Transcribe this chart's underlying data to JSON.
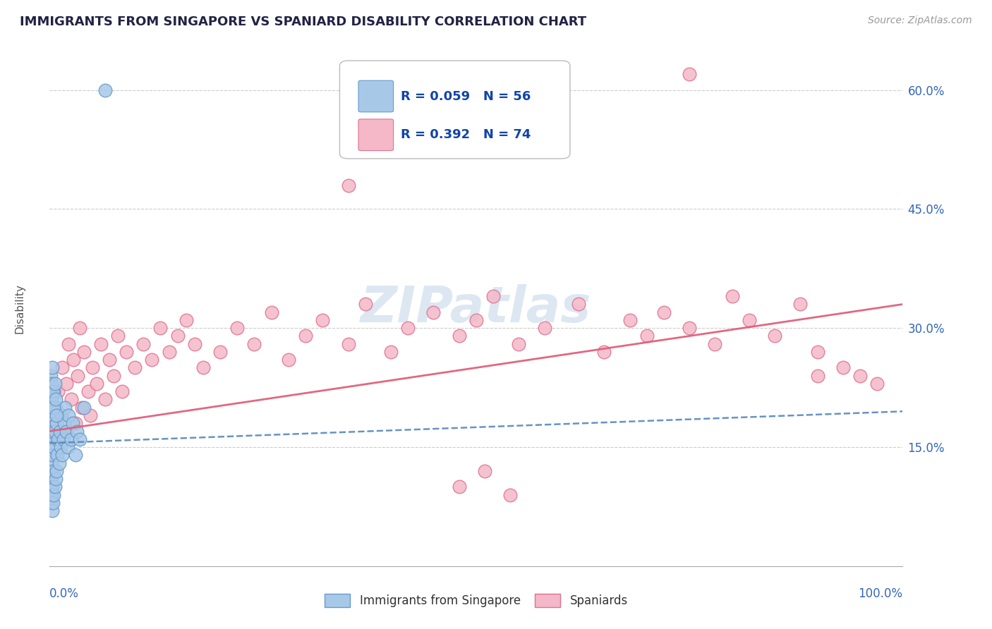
{
  "title": "IMMIGRANTS FROM SINGAPORE VS SPANIARD DISABILITY CORRELATION CHART",
  "source": "Source: ZipAtlas.com",
  "ylabel": "Disability",
  "y_ticks": [
    0.0,
    0.15,
    0.3,
    0.45,
    0.6
  ],
  "y_tick_labels": [
    "",
    "15.0%",
    "30.0%",
    "45.0%",
    "60.0%"
  ],
  "x_lim": [
    0.0,
    1.0
  ],
  "y_lim": [
    0.0,
    0.65
  ],
  "series1_label": "Immigrants from Singapore",
  "series1_R": 0.059,
  "series1_N": 56,
  "series1_color": "#a8c8e8",
  "series1_edge_color": "#6699cc",
  "series1_line_color": "#5588bb",
  "series2_label": "Spaniards",
  "series2_R": 0.392,
  "series2_N": 74,
  "series2_color": "#f4b8c8",
  "series2_edge_color": "#e07090",
  "series2_line_color": "#e0607a",
  "background_color": "#ffffff",
  "grid_color": "#cccccc",
  "title_color": "#333355",
  "watermark_color": "#c5d8ea",
  "watermark_text": "ZIPatlas",
  "legend_text_color": "#1144aa",
  "singapore_x": [
    0.001,
    0.001,
    0.001,
    0.001,
    0.001,
    0.002,
    0.002,
    0.002,
    0.002,
    0.003,
    0.003,
    0.003,
    0.003,
    0.003,
    0.004,
    0.004,
    0.004,
    0.005,
    0.005,
    0.005,
    0.006,
    0.006,
    0.007,
    0.007,
    0.008,
    0.008,
    0.009,
    0.01,
    0.011,
    0.012,
    0.013,
    0.014,
    0.015,
    0.016,
    0.017,
    0.018,
    0.02,
    0.021,
    0.022,
    0.025,
    0.027,
    0.03,
    0.032,
    0.035,
    0.04,
    0.001,
    0.001,
    0.002,
    0.002,
    0.003,
    0.004,
    0.005,
    0.006,
    0.007,
    0.008,
    0.065
  ],
  "singapore_y": [
    0.08,
    0.1,
    0.12,
    0.14,
    0.16,
    0.09,
    0.11,
    0.13,
    0.18,
    0.07,
    0.1,
    0.14,
    0.17,
    0.2,
    0.08,
    0.12,
    0.19,
    0.09,
    0.15,
    0.22,
    0.1,
    0.17,
    0.11,
    0.2,
    0.12,
    0.18,
    0.14,
    0.16,
    0.13,
    0.17,
    0.15,
    0.19,
    0.14,
    0.16,
    0.18,
    0.2,
    0.17,
    0.15,
    0.19,
    0.16,
    0.18,
    0.14,
    0.17,
    0.16,
    0.2,
    0.22,
    0.24,
    0.21,
    0.23,
    0.25,
    0.22,
    0.2,
    0.23,
    0.21,
    0.19,
    0.6
  ],
  "spaniard_x": [
    0.003,
    0.005,
    0.007,
    0.01,
    0.012,
    0.015,
    0.018,
    0.02,
    0.022,
    0.025,
    0.028,
    0.03,
    0.033,
    0.035,
    0.038,
    0.04,
    0.045,
    0.048,
    0.05,
    0.055,
    0.06,
    0.065,
    0.07,
    0.075,
    0.08,
    0.085,
    0.09,
    0.1,
    0.11,
    0.12,
    0.13,
    0.14,
    0.15,
    0.16,
    0.17,
    0.18,
    0.2,
    0.22,
    0.24,
    0.26,
    0.28,
    0.3,
    0.32,
    0.35,
    0.37,
    0.4,
    0.42,
    0.45,
    0.48,
    0.5,
    0.52,
    0.55,
    0.58,
    0.62,
    0.65,
    0.68,
    0.7,
    0.72,
    0.75,
    0.78,
    0.8,
    0.82,
    0.85,
    0.88,
    0.9,
    0.93,
    0.95,
    0.97,
    0.35,
    0.48,
    0.51,
    0.54,
    0.75,
    0.9
  ],
  "spaniard_y": [
    0.18,
    0.2,
    0.16,
    0.22,
    0.19,
    0.25,
    0.17,
    0.23,
    0.28,
    0.21,
    0.26,
    0.18,
    0.24,
    0.3,
    0.2,
    0.27,
    0.22,
    0.19,
    0.25,
    0.23,
    0.28,
    0.21,
    0.26,
    0.24,
    0.29,
    0.22,
    0.27,
    0.25,
    0.28,
    0.26,
    0.3,
    0.27,
    0.29,
    0.31,
    0.28,
    0.25,
    0.27,
    0.3,
    0.28,
    0.32,
    0.26,
    0.29,
    0.31,
    0.28,
    0.33,
    0.27,
    0.3,
    0.32,
    0.29,
    0.31,
    0.34,
    0.28,
    0.3,
    0.33,
    0.27,
    0.31,
    0.29,
    0.32,
    0.3,
    0.28,
    0.34,
    0.31,
    0.29,
    0.33,
    0.27,
    0.25,
    0.24,
    0.23,
    0.48,
    0.1,
    0.12,
    0.09,
    0.62,
    0.24
  ]
}
